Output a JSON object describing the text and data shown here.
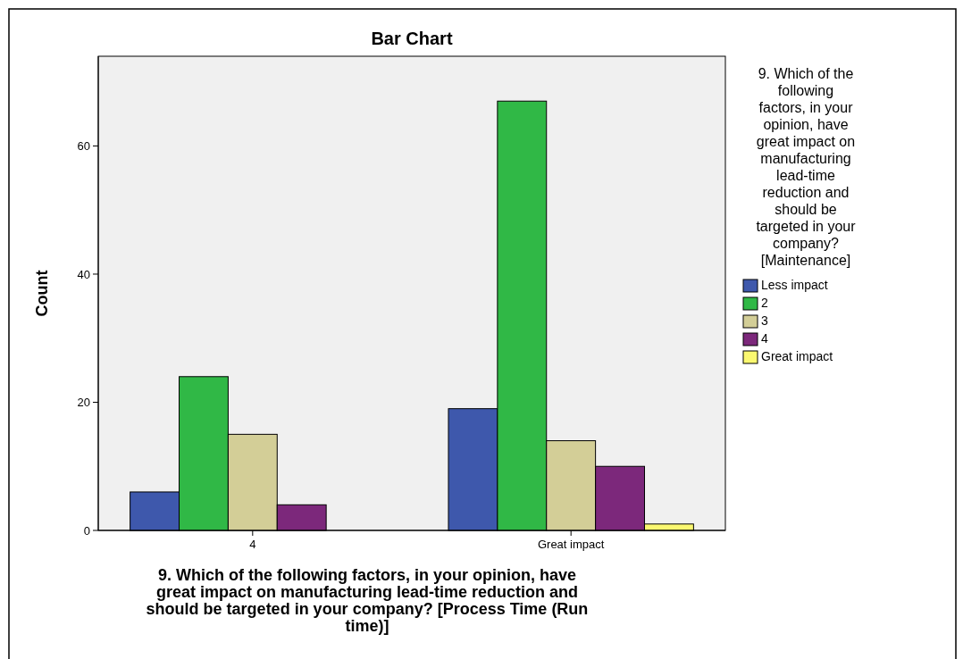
{
  "chart_data": {
    "type": "bar",
    "title": "Bar Chart",
    "xlabel": "9. Which of the following factors, in your opinion, have great impact on manufacturing lead-time reduction and should be targeted in your company?  [Process Time (Run time)]",
    "ylabel": "Count",
    "legend_title": "9. Which of the following factors, in your opinion, have great impact on manufacturing lead-time reduction and should be targeted in your company? [Maintenance]",
    "categories": [
      "4",
      "Great impact"
    ],
    "series": [
      {
        "name": "Less impact",
        "color": "#3e58ac",
        "values": [
          6,
          19
        ]
      },
      {
        "name": "2",
        "color": "#30b846",
        "values": [
          24,
          67
        ]
      },
      {
        "name": "3",
        "color": "#d3ce97",
        "values": [
          15,
          14
        ]
      },
      {
        "name": "4",
        "color": "#7c287b",
        "values": [
          4,
          10
        ]
      },
      {
        "name": "Great impact",
        "color": "#fbf870",
        "values": [
          null,
          1
        ]
      }
    ],
    "ylim": [
      0,
      74
    ],
    "yticks": [
      0,
      20,
      40,
      60
    ],
    "grid": false,
    "legend": "right"
  }
}
